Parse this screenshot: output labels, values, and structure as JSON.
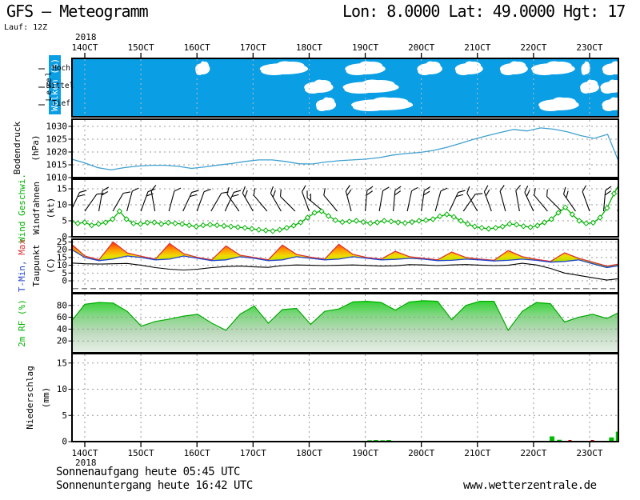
{
  "header": {
    "title": "GFS  –  Meteogramm",
    "coords": "Lon: 8.0000 Lat: 49.0000 Hgt: 17",
    "run_label": "Lauf: 12Z"
  },
  "time_axis": {
    "year": "2018",
    "day_labels": [
      "14OCT",
      "15OCT",
      "16OCT",
      "17OCT",
      "18OCT",
      "19OCT",
      "20OCT",
      "21OCT",
      "22OCT",
      "23OCT"
    ]
  },
  "footer": {
    "sunrise": "Sonnenaufgang heute 05:45 UTC",
    "sunset": "Sonnenuntergang heute 16:42 UTC",
    "website": "www.wetterzentrale.de"
  },
  "colors": {
    "cloud_bg": "#0A9EE4",
    "cloud_white": "#FFFFFF",
    "pressure_line": "#3FA0D0",
    "wind_green": "#00B400",
    "tmin_blue": "#2244CC",
    "tmax_red": "#E03030",
    "dew_black": "#000000",
    "rh_line": "#00AA00",
    "precip_green": "#00BB00",
    "precip_red": "#CC0000",
    "grid_gray": "#999999",
    "border_black": "#000000"
  },
  "chart_data": [
    {
      "id": "clouds",
      "type": "heatmap",
      "title": "Wolken (%)",
      "level_label": "Level",
      "rows": [
        "Hoch",
        "Mittel",
        "Tief"
      ],
      "bg_color": "#0A9EE4",
      "cloud_color": "#FFFFFF",
      "clouds": [
        {
          "row": 0,
          "day": 2.1,
          "w": 0.26
        },
        {
          "row": 0,
          "day": 3.55,
          "w": 0.86
        },
        {
          "row": 0,
          "day": 5.0,
          "w": 0.72
        },
        {
          "row": 0,
          "day": 6.15,
          "w": 0.45
        },
        {
          "row": 0,
          "day": 6.85,
          "w": 0.5
        },
        {
          "row": 0,
          "day": 7.65,
          "w": 0.5
        },
        {
          "row": 0,
          "day": 8.35,
          "w": 0.78
        },
        {
          "row": 0,
          "day": 8.93,
          "w": 0.16
        },
        {
          "row": 0,
          "day": 9.45,
          "w": 0.45
        },
        {
          "row": 1,
          "day": 4.17,
          "w": 0.52
        },
        {
          "row": 1,
          "day": 5.1,
          "w": 1.0
        },
        {
          "row": 1,
          "day": 9.0,
          "w": 0.34
        },
        {
          "row": 1,
          "day": 9.4,
          "w": 0.42
        },
        {
          "row": 2,
          "day": 4.3,
          "w": 0.36
        },
        {
          "row": 2,
          "day": 5.3,
          "w": 1.1
        },
        {
          "row": 2,
          "day": 8.45,
          "w": 0.72
        },
        {
          "row": 2,
          "day": 9.42,
          "w": 0.4
        }
      ]
    },
    {
      "id": "pressure",
      "type": "line",
      "ylabel": "Bodendruck",
      "unit": "(hPa)",
      "ylim": [
        1010,
        1032.8
      ],
      "yticks": [
        1010,
        1015,
        1020,
        1025,
        1030
      ],
      "color": "#3FA0D0",
      "t_range": [
        -0.25,
        9.56
      ],
      "values": [
        1017.3,
        1015.8,
        1013.9,
        1013.0,
        1013.9,
        1014.5,
        1014.8,
        1014.8,
        1014.4,
        1013.6,
        1014.2,
        1014.9,
        1015.5,
        1016.3,
        1016.9,
        1016.9,
        1016.3,
        1015.4,
        1015.3,
        1016.1,
        1016.6,
        1016.9,
        1017.2,
        1017.8,
        1018.8,
        1019.4,
        1019.8,
        1020.6,
        1021.8,
        1023.3,
        1024.9,
        1026.3,
        1027.6,
        1028.8,
        1028.2,
        1029.4,
        1028.9,
        1027.9,
        1026.4,
        1025.3,
        1026.9,
        1014.0
      ]
    },
    {
      "id": "wind",
      "type": "line",
      "ylabel": "Wind Geschwi.",
      "ylabel2": "Windfahnen",
      "unit": "(kt)",
      "ylim": [
        0,
        18
      ],
      "yticks": [
        0,
        5,
        10,
        15
      ],
      "color": "#00B400",
      "t_range": [
        -0.25,
        9.56
      ],
      "values": [
        5,
        4.2,
        4.5,
        3.6,
        4,
        4.5,
        5.5,
        8,
        5.5,
        4.2,
        4,
        4.4,
        4.5,
        4,
        4.4,
        4.2,
        4,
        3.6,
        3.2,
        3.6,
        3.8,
        3.6,
        3.4,
        3.2,
        3,
        2.8,
        2.5,
        2.2,
        2,
        1.8,
        2.2,
        2.8,
        3.5,
        4.5,
        6,
        7.5,
        8,
        6.5,
        5.2,
        4.6,
        4.8,
        5,
        4.6,
        4.2,
        4.5,
        5,
        4.8,
        4.5,
        4.3,
        4.6,
        5,
        5.2,
        5.5,
        6.4,
        7,
        6.2,
        5,
        4,
        3.2,
        2.8,
        2.5,
        2.8,
        3.2,
        4,
        3.8,
        3.3,
        3,
        3.5,
        4.5,
        5.5,
        7.5,
        9.2,
        7,
        5,
        4.2,
        4.4,
        6,
        9,
        13.5,
        17.5
      ],
      "barbs": [
        [
          -0.25,
          25,
          2
        ],
        [
          0,
          35,
          1
        ],
        [
          0.25,
          10,
          2
        ],
        [
          0.5,
          30,
          1
        ],
        [
          0.75,
          15,
          1
        ],
        [
          1,
          20,
          2
        ],
        [
          1.25,
          -10,
          1
        ],
        [
          1.5,
          15,
          1
        ],
        [
          1.75,
          25,
          2
        ],
        [
          2,
          20,
          1
        ],
        [
          2.25,
          30,
          1
        ],
        [
          2.5,
          25,
          2
        ],
        [
          2.75,
          -35,
          1
        ],
        [
          3,
          -30,
          2
        ],
        [
          3.25,
          -40,
          1
        ],
        [
          3.5,
          -30,
          2
        ],
        [
          3.75,
          -45,
          1
        ],
        [
          4,
          -20,
          1
        ],
        [
          4.25,
          -50,
          2
        ],
        [
          4.5,
          -40,
          1
        ],
        [
          4.75,
          -15,
          2
        ],
        [
          5,
          5,
          2
        ],
        [
          5.25,
          10,
          1
        ],
        [
          5.5,
          5,
          2
        ],
        [
          5.75,
          12,
          1
        ],
        [
          6,
          8,
          2
        ],
        [
          6.25,
          15,
          1
        ],
        [
          6.5,
          25,
          2
        ],
        [
          6.75,
          35,
          1
        ],
        [
          7,
          -30,
          1
        ],
        [
          7.25,
          -20,
          2
        ],
        [
          7.5,
          -15,
          1
        ],
        [
          7.75,
          -10,
          1
        ],
        [
          8,
          -25,
          2
        ],
        [
          8.25,
          -40,
          1
        ],
        [
          8.5,
          -45,
          1
        ],
        [
          8.75,
          -35,
          2
        ],
        [
          9,
          -20,
          1
        ],
        [
          9.25,
          5,
          2
        ],
        [
          9.5,
          10,
          2
        ]
      ]
    },
    {
      "id": "temperature",
      "type": "area",
      "ylabel_min": "T-Min, ",
      "ylabel_max": "Max",
      "ylabel2": "Taupunkt",
      "unit": "(C)",
      "ylim": [
        -7.7,
        26.8
      ],
      "yticks": [
        0,
        5,
        10,
        15,
        20,
        25
      ],
      "tmin_color": "#2244CC",
      "tmax_color": "#E03030",
      "dew_color": "#000000",
      "gradient_stops": [
        {
          "v": 26,
          "c": "#EE2222"
        },
        {
          "v": 24,
          "c": "#FF4400"
        },
        {
          "v": 20,
          "c": "#FF9900"
        },
        {
          "v": 16,
          "c": "#EEDD00"
        },
        {
          "v": 13,
          "c": "#BBDD00"
        },
        {
          "v": 9,
          "c": "#44BB44"
        }
      ],
      "t_range": [
        -0.25,
        9.56
      ],
      "tmin": [
        20.5,
        15,
        13,
        14,
        16,
        15,
        13.5,
        14,
        16,
        14.5,
        13,
        13.5,
        15.5,
        14.5,
        13,
        13.5,
        15.5,
        14.5,
        13.5,
        14,
        15.5,
        14.5,
        13.5,
        13.8,
        14.5,
        14,
        13,
        13.2,
        14,
        13.5,
        12.8,
        13.2,
        14,
        13.2,
        12,
        12.5,
        13.5,
        11,
        8.5,
        10
      ],
      "tmax": [
        24,
        16,
        13.5,
        25,
        18,
        15.8,
        14,
        24,
        17.5,
        15,
        13.5,
        22.5,
        16.5,
        15,
        13.5,
        23,
        17,
        15.2,
        14,
        23.5,
        17,
        15,
        14,
        19,
        15.5,
        14.5,
        13.5,
        18.5,
        15,
        14,
        13.2,
        19.5,
        15.5,
        13.8,
        12.5,
        18,
        14.5,
        12,
        9.5,
        11
      ],
      "dewpoint": [
        11.5,
        11,
        10.8,
        11,
        11.2,
        10,
        8.5,
        7.5,
        7,
        7.5,
        8.5,
        9.2,
        9.5,
        9,
        8.7,
        9.8,
        10.2,
        10,
        9.8,
        10,
        10.2,
        9.9,
        9.5,
        9.7,
        10.4,
        10.2,
        9.8,
        10.2,
        10.5,
        10.1,
        9.8,
        10,
        11.3,
        10.2,
        8,
        5,
        3.5,
        2,
        0.5,
        1.5
      ]
    },
    {
      "id": "humidity",
      "type": "area",
      "ylabel": "2m RF (%)",
      "ylim": [
        0,
        100
      ],
      "yticks": [
        20,
        40,
        60,
        80
      ],
      "line_color": "#00AA00",
      "gradient_top": "#00D800",
      "gradient_bottom": "#E8F0E8",
      "t_range": [
        -0.25,
        9.56
      ],
      "values": [
        52,
        82,
        85,
        84,
        70,
        45,
        53,
        57,
        62,
        65,
        50,
        38,
        65,
        79,
        50,
        73,
        75,
        48,
        70,
        74,
        86,
        87,
        85,
        72,
        86,
        88,
        87,
        56,
        80,
        87,
        87,
        38,
        70,
        85,
        83,
        52,
        60,
        65,
        58,
        70
      ]
    },
    {
      "id": "precipitation",
      "type": "bar",
      "ylabel": "Niederschlag",
      "unit": "(mm)",
      "ylim": [
        0,
        16.8
      ],
      "yticks": [
        0,
        5,
        10,
        15
      ],
      "bar_color": "#00BB00",
      "mark_color": "#CC0000",
      "bars": [
        {
          "day": 5.08,
          "mm": 0.25
        },
        {
          "day": 5.19,
          "mm": 0.3
        },
        {
          "day": 5.31,
          "mm": 0.25
        },
        {
          "day": 5.42,
          "mm": 0.3
        },
        {
          "day": 8.33,
          "mm": 1.0
        },
        {
          "day": 8.46,
          "mm": 0.35
        },
        {
          "day": 9.39,
          "mm": 0.8
        },
        {
          "day": 9.51,
          "mm": 1.9
        }
      ],
      "marks": [
        {
          "day": 8.65
        },
        {
          "day": 9.05
        }
      ]
    }
  ]
}
